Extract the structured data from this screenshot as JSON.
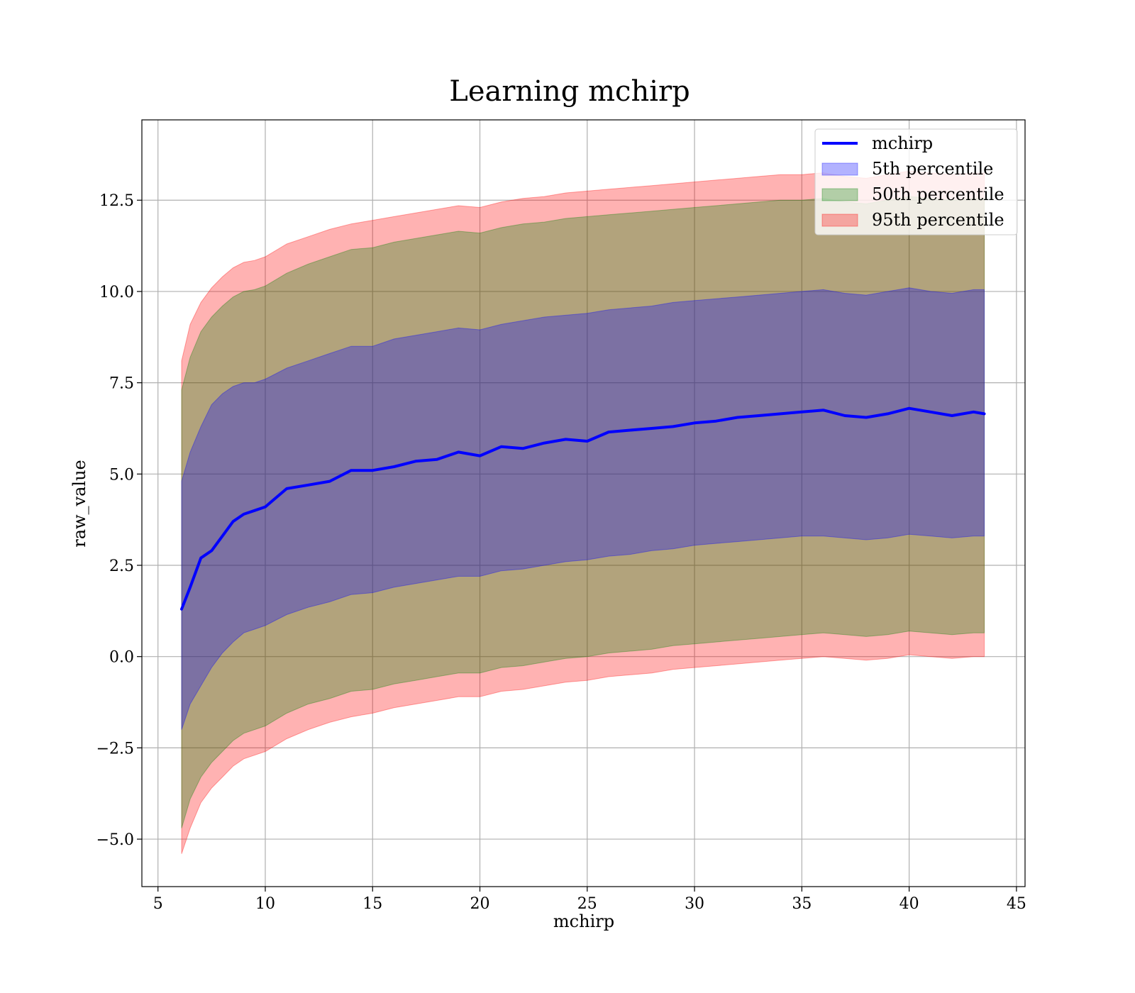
{
  "chart_data": {
    "type": "area",
    "title": "Learning mchirp",
    "xlabel": "mchirp",
    "ylabel": "raw_value",
    "xlim": [
      4.25,
      45.4
    ],
    "ylim": [
      -6.3,
      14.7
    ],
    "x_ticks": [
      5,
      10,
      15,
      20,
      25,
      30,
      35,
      40,
      45
    ],
    "x_tick_labels": [
      "5",
      "10",
      "15",
      "20",
      "25",
      "30",
      "35",
      "40",
      "45"
    ],
    "y_ticks": [
      -5.0,
      -2.5,
      0.0,
      2.5,
      5.0,
      7.5,
      10.0,
      12.5
    ],
    "y_tick_labels": [
      "−5.0",
      "−2.5",
      "0.0",
      "2.5",
      "5.0",
      "7.5",
      "10.0",
      "12.5"
    ],
    "grid": true,
    "legend_position": "top-right",
    "x": [
      6.1,
      6.5,
      7.0,
      7.5,
      8.0,
      8.5,
      9.0,
      9.5,
      10.0,
      11.0,
      12.0,
      13.0,
      14.0,
      15.0,
      16.0,
      17.0,
      18.0,
      19.0,
      20.0,
      21.0,
      22.0,
      23.0,
      24.0,
      25.0,
      26.0,
      27.0,
      28.0,
      29.0,
      30.0,
      31.0,
      32.0,
      33.0,
      34.0,
      35.0,
      36.0,
      37.0,
      38.0,
      39.0,
      40.0,
      41.0,
      42.0,
      43.0,
      43.5
    ],
    "series": [
      {
        "name": "mchirp",
        "kind": "line",
        "color": "#0000ff",
        "values": [
          1.3,
          1.9,
          2.7,
          2.9,
          3.3,
          3.7,
          3.9,
          4.0,
          4.1,
          4.6,
          4.7,
          4.8,
          5.1,
          5.1,
          5.2,
          5.35,
          5.4,
          5.6,
          5.5,
          5.75,
          5.7,
          5.85,
          5.95,
          5.9,
          6.15,
          6.2,
          6.25,
          6.3,
          6.4,
          6.45,
          6.55,
          6.6,
          6.65,
          6.7,
          6.75,
          6.6,
          6.55,
          6.65,
          6.8,
          6.7,
          6.6,
          6.7,
          6.65
        ]
      },
      {
        "name": "5th percentile",
        "kind": "band",
        "color": "#0000ff",
        "opacity": 0.3,
        "upper": [
          4.8,
          5.6,
          6.3,
          6.9,
          7.2,
          7.4,
          7.5,
          7.5,
          7.6,
          7.9,
          8.1,
          8.3,
          8.5,
          8.5,
          8.7,
          8.8,
          8.9,
          9.0,
          8.95,
          9.1,
          9.2,
          9.3,
          9.35,
          9.4,
          9.5,
          9.55,
          9.6,
          9.7,
          9.75,
          9.8,
          9.85,
          9.9,
          9.95,
          10.0,
          10.05,
          9.95,
          9.9,
          10.0,
          10.1,
          10.0,
          9.95,
          10.05,
          10.05
        ],
        "lower": [
          -2.0,
          -1.3,
          -0.8,
          -0.3,
          0.1,
          0.4,
          0.65,
          0.75,
          0.85,
          1.15,
          1.35,
          1.5,
          1.7,
          1.75,
          1.9,
          2.0,
          2.1,
          2.2,
          2.2,
          2.35,
          2.4,
          2.5,
          2.6,
          2.65,
          2.75,
          2.8,
          2.9,
          2.95,
          3.05,
          3.1,
          3.15,
          3.2,
          3.25,
          3.3,
          3.3,
          3.25,
          3.2,
          3.25,
          3.35,
          3.3,
          3.25,
          3.3,
          3.3
        ]
      },
      {
        "name": "50th percentile",
        "kind": "band",
        "color": "#008000",
        "opacity": 0.3,
        "upper": [
          7.3,
          8.2,
          8.9,
          9.3,
          9.6,
          9.85,
          10.0,
          10.05,
          10.15,
          10.5,
          10.75,
          10.95,
          11.15,
          11.2,
          11.35,
          11.45,
          11.55,
          11.65,
          11.6,
          11.75,
          11.85,
          11.9,
          12.0,
          12.05,
          12.1,
          12.15,
          12.2,
          12.25,
          12.3,
          12.35,
          12.4,
          12.45,
          12.5,
          12.5,
          12.55,
          12.45,
          12.4,
          12.5,
          12.6,
          12.55,
          12.5,
          12.55,
          12.55
        ],
        "lower": [
          -4.7,
          -3.9,
          -3.3,
          -2.9,
          -2.6,
          -2.3,
          -2.1,
          -2.0,
          -1.9,
          -1.55,
          -1.3,
          -1.15,
          -0.95,
          -0.9,
          -0.75,
          -0.65,
          -0.55,
          -0.45,
          -0.45,
          -0.3,
          -0.25,
          -0.15,
          -0.05,
          0.0,
          0.1,
          0.15,
          0.2,
          0.3,
          0.35,
          0.4,
          0.45,
          0.5,
          0.55,
          0.6,
          0.65,
          0.6,
          0.55,
          0.6,
          0.7,
          0.65,
          0.6,
          0.65,
          0.65
        ]
      },
      {
        "name": "95th percentile",
        "kind": "band",
        "color": "#ff0000",
        "opacity": 0.3,
        "upper": [
          8.1,
          9.1,
          9.7,
          10.1,
          10.4,
          10.65,
          10.8,
          10.85,
          10.95,
          11.3,
          11.5,
          11.7,
          11.85,
          11.95,
          12.05,
          12.15,
          12.25,
          12.35,
          12.3,
          12.45,
          12.55,
          12.6,
          12.7,
          12.75,
          12.8,
          12.85,
          12.9,
          12.95,
          13.0,
          13.05,
          13.1,
          13.15,
          13.2,
          13.2,
          13.25,
          13.15,
          13.1,
          13.2,
          13.3,
          13.25,
          13.2,
          13.25,
          13.25
        ],
        "lower": [
          -5.4,
          -4.7,
          -4.0,
          -3.6,
          -3.3,
          -3.0,
          -2.8,
          -2.7,
          -2.6,
          -2.25,
          -2.0,
          -1.8,
          -1.65,
          -1.55,
          -1.4,
          -1.3,
          -1.2,
          -1.1,
          -1.1,
          -0.95,
          -0.9,
          -0.8,
          -0.7,
          -0.65,
          -0.55,
          -0.5,
          -0.45,
          -0.35,
          -0.3,
          -0.25,
          -0.2,
          -0.15,
          -0.1,
          -0.05,
          0.0,
          -0.05,
          -0.1,
          -0.05,
          0.05,
          0.0,
          -0.05,
          0.0,
          0.0
        ]
      }
    ]
  }
}
